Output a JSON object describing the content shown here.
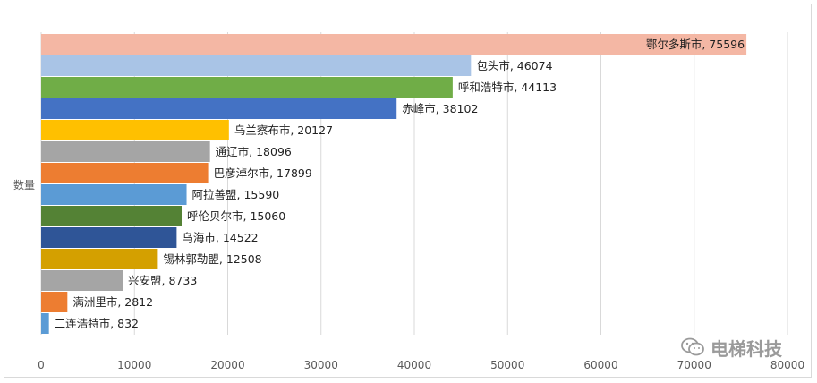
{
  "chart_data": {
    "type": "bar",
    "orientation": "horizontal",
    "ylabel": "数量",
    "xlim": [
      0,
      80000
    ],
    "x_ticks": [
      "0",
      "10000",
      "20000",
      "30000",
      "40000",
      "50000",
      "60000",
      "70000",
      "80000"
    ],
    "grid": true,
    "legend": "none",
    "bars": [
      {
        "category": "鄂尔多斯市",
        "value": 75596,
        "label": "鄂尔多斯市, 75596",
        "color": "#F4B7A4"
      },
      {
        "category": "包头市",
        "value": 46074,
        "label": "包头市, 46074",
        "color": "#A9C4E6"
      },
      {
        "category": "呼和浩特市",
        "value": 44113,
        "label": "呼和浩特市, 44113",
        "color": "#70AD47"
      },
      {
        "category": "赤峰市",
        "value": 38102,
        "label": "赤峰市, 38102",
        "color": "#4472C4"
      },
      {
        "category": "乌兰察布市",
        "value": 20127,
        "label": "乌兰察布市, 20127",
        "color": "#FFC000"
      },
      {
        "category": "通辽市",
        "value": 18096,
        "label": "通辽市, 18096",
        "color": "#A5A5A5"
      },
      {
        "category": "巴彦淖尔市",
        "value": 17899,
        "label": "巴彦淖尔市, 17899",
        "color": "#ED7D31"
      },
      {
        "category": "阿拉善盟",
        "value": 15590,
        "label": "阿拉善盟, 15590",
        "color": "#5B9BD5"
      },
      {
        "category": "呼伦贝尔市",
        "value": 15060,
        "label": "呼伦贝尔市, 15060",
        "color": "#548235"
      },
      {
        "category": "乌海市",
        "value": 14522,
        "label": "乌海市, 14522",
        "color": "#2F5597"
      },
      {
        "category": "锡林郭勒盟",
        "value": 12508,
        "label": "锡林郭勒盟, 12508",
        "color": "#D4A000"
      },
      {
        "category": "兴安盟",
        "value": 8733,
        "label": "兴安盟, 8733",
        "color": "#A5A5A5"
      },
      {
        "category": "满洲里市",
        "value": 2812,
        "label": "满洲里市, 2812",
        "color": "#ED7D31"
      },
      {
        "category": "二连浩特市",
        "value": 832,
        "label": "二连浩特市, 832",
        "color": "#5B9BD5"
      }
    ]
  },
  "watermark": {
    "text": "电梯科技",
    "icon": "wechat-icon"
  }
}
